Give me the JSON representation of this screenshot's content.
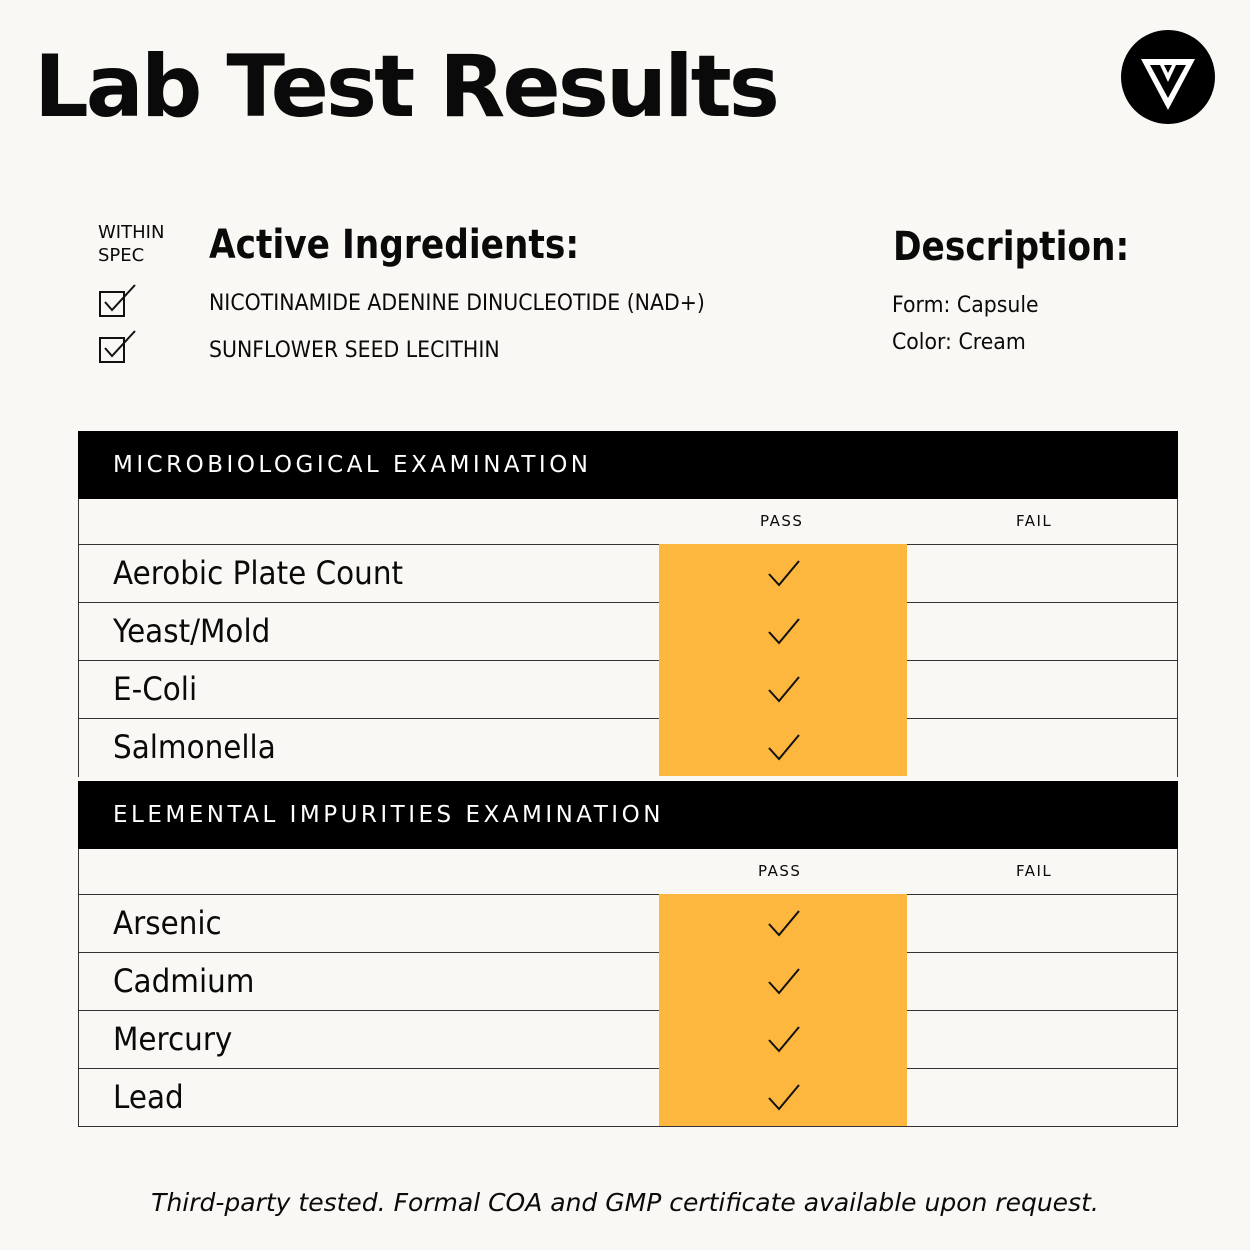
{
  "title": "Lab Test Results",
  "logo_icon": "chevron-v-logo-icon",
  "spec": {
    "label_line1": "WITHIN",
    "label_line2": "SPEC",
    "check_icon": "checkbox-checked-icon"
  },
  "active_ingredients": {
    "heading": "Active Ingredients:",
    "items": [
      "NICOTINAMIDE ADENINE DINUCLEOTIDE (NAD+)",
      "SUNFLOWER SEED LECITHIN"
    ]
  },
  "description": {
    "heading": "Description:",
    "lines": [
      "Form: Capsule",
      "Color: Cream"
    ]
  },
  "tables": [
    {
      "title": "MICROBIOLOGICAL EXAMINATION",
      "pass_label": "PASS",
      "fail_label": "FAIL",
      "rows": [
        {
          "name": "Aerobic Plate Count",
          "result": "pass"
        },
        {
          "name": "Yeast/Mold",
          "result": "pass"
        },
        {
          "name": "E-Coli",
          "result": "pass"
        },
        {
          "name": "Salmonella",
          "result": "pass"
        }
      ]
    },
    {
      "title": "ELEMENTAL IMPURITIES EXAMINATION",
      "pass_label": "PASS",
      "fail_label": "FAIL",
      "rows": [
        {
          "name": "Arsenic",
          "result": "pass"
        },
        {
          "name": "Cadmium",
          "result": "pass"
        },
        {
          "name": "Mercury",
          "result": "pass"
        },
        {
          "name": "Lead",
          "result": "pass"
        }
      ]
    }
  ],
  "colors": {
    "background": "#f9f8f4",
    "header_bg": "#000000",
    "pass_highlight": "#fdb73e",
    "text": "#0a0a0a"
  },
  "footer": "Third-party tested. Formal COA and GMP certificate available upon request."
}
